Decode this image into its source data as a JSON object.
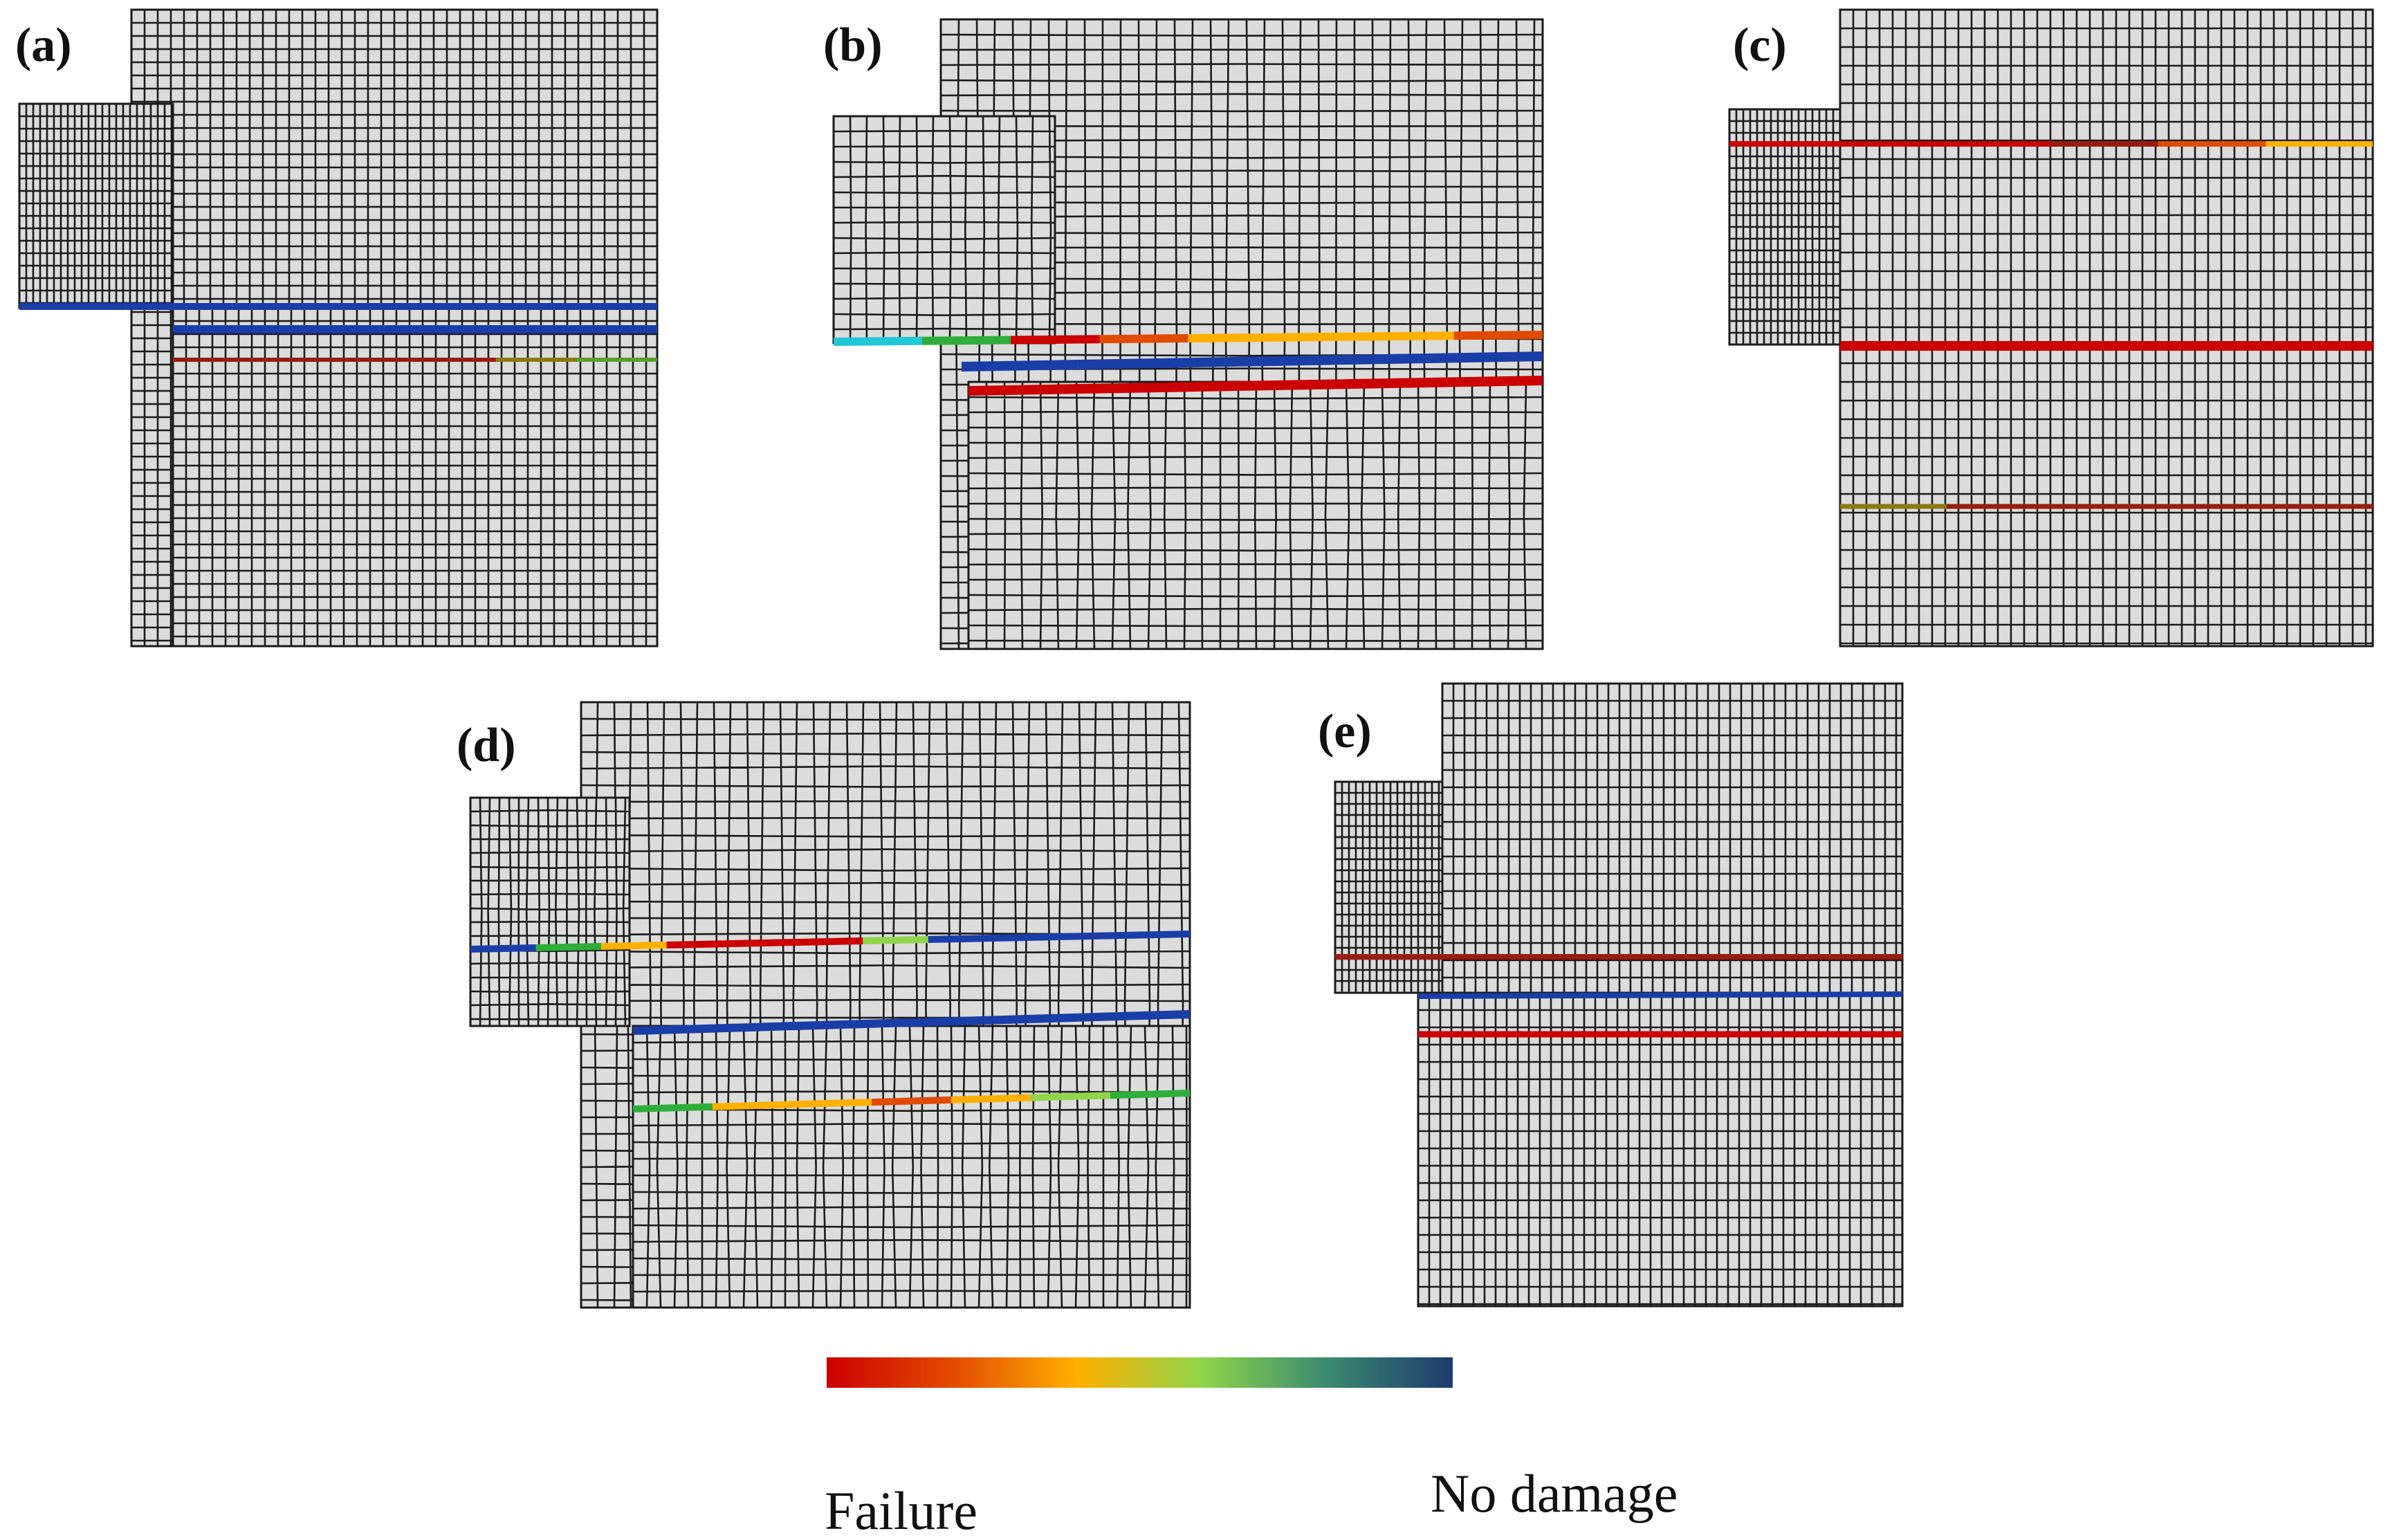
{
  "colors": {
    "mesh_fill": "#dcdcdc",
    "grid_line": "#1a1a1a",
    "failure": "#cc0000",
    "no_damage": "#1a3ea8"
  },
  "panels": [
    {
      "label": "(a)"
    },
    {
      "label": "(b)"
    },
    {
      "label": "(c)"
    },
    {
      "label": "(d)"
    },
    {
      "label": "(e)"
    }
  ],
  "legend": {
    "left_label": "Failure",
    "right_label": "No damage",
    "gradient_stops": [
      "#cc0000",
      "#e24a00",
      "#ffb000",
      "#8fd44a",
      "#3a8a70",
      "#1e3a6e"
    ]
  }
}
